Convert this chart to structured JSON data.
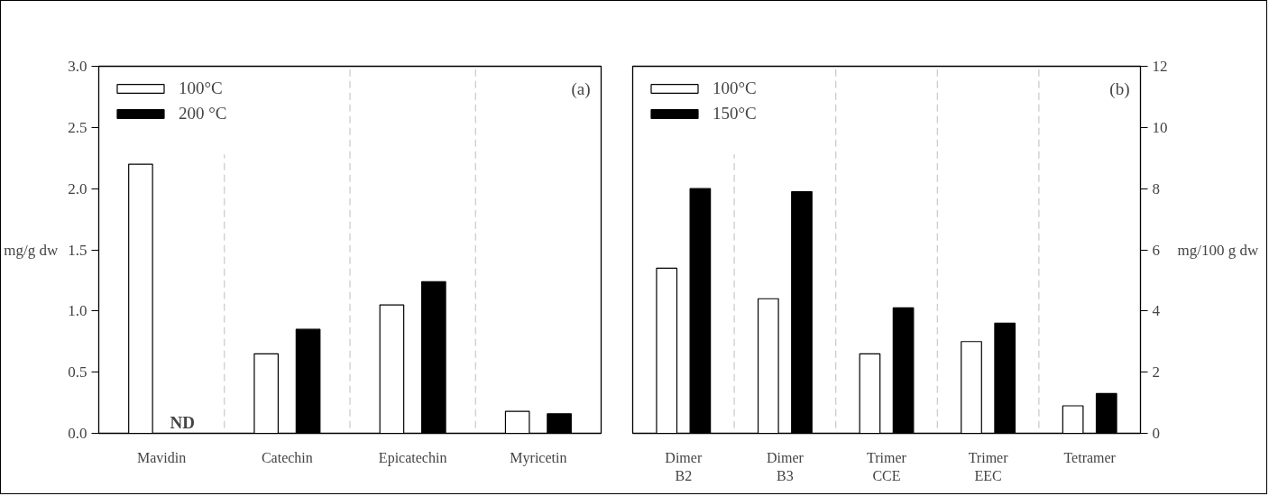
{
  "chart_data": [
    {
      "type": "bar",
      "categories": [
        "Mavidin",
        "Catechin",
        "Epicatechin",
        "Myricetin"
      ],
      "ylabel": "mg/g dw",
      "ylim": [
        0,
        3.0
      ],
      "yticks": [
        {
          "value": 0,
          "label": "0.0"
        },
        0.5,
        {
          "value": 1,
          "label": "1.0"
        },
        1.5,
        {
          "value": 2,
          "label": "2.0"
        },
        2.5,
        {
          "value": 3,
          "label": "3.0"
        }
      ],
      "legend": "top left",
      "grid": false,
      "series": [
        {
          "name": "100°C",
          "color": "#ffffff",
          "values": [
            2.2,
            0.65,
            1.05,
            0.18
          ]
        },
        {
          "name": "200 °C",
          "color": "#000000",
          "values": [
            null,
            0.85,
            1.24,
            0.16
          ]
        }
      ],
      "annotations": [
        "(a)",
        "ND"
      ]
    },
    {
      "type": "bar",
      "categories": [
        "Dimer\nB2",
        "Dimer\nB3",
        "Trimer\nCCE",
        "Trimer\nEEC",
        "Tetramer"
      ],
      "y2label": "mg/100 g dw",
      "y2lim": [
        0,
        12
      ],
      "y2ticks": [
        0,
        2,
        4,
        6,
        8,
        10,
        12
      ],
      "legend": "top left",
      "grid": false,
      "series": [
        {
          "name": "100°C",
          "color": "#ffffff",
          "values": [
            5.4,
            4.4,
            2.6,
            3.0,
            0.9
          ],
          "axis": "y2"
        },
        {
          "name": "150°C",
          "color": "#000000",
          "values": [
            8.0,
            7.9,
            4.1,
            3.6,
            1.3
          ],
          "axis": "y2"
        }
      ],
      "annotations": [
        "(b)"
      ]
    }
  ]
}
